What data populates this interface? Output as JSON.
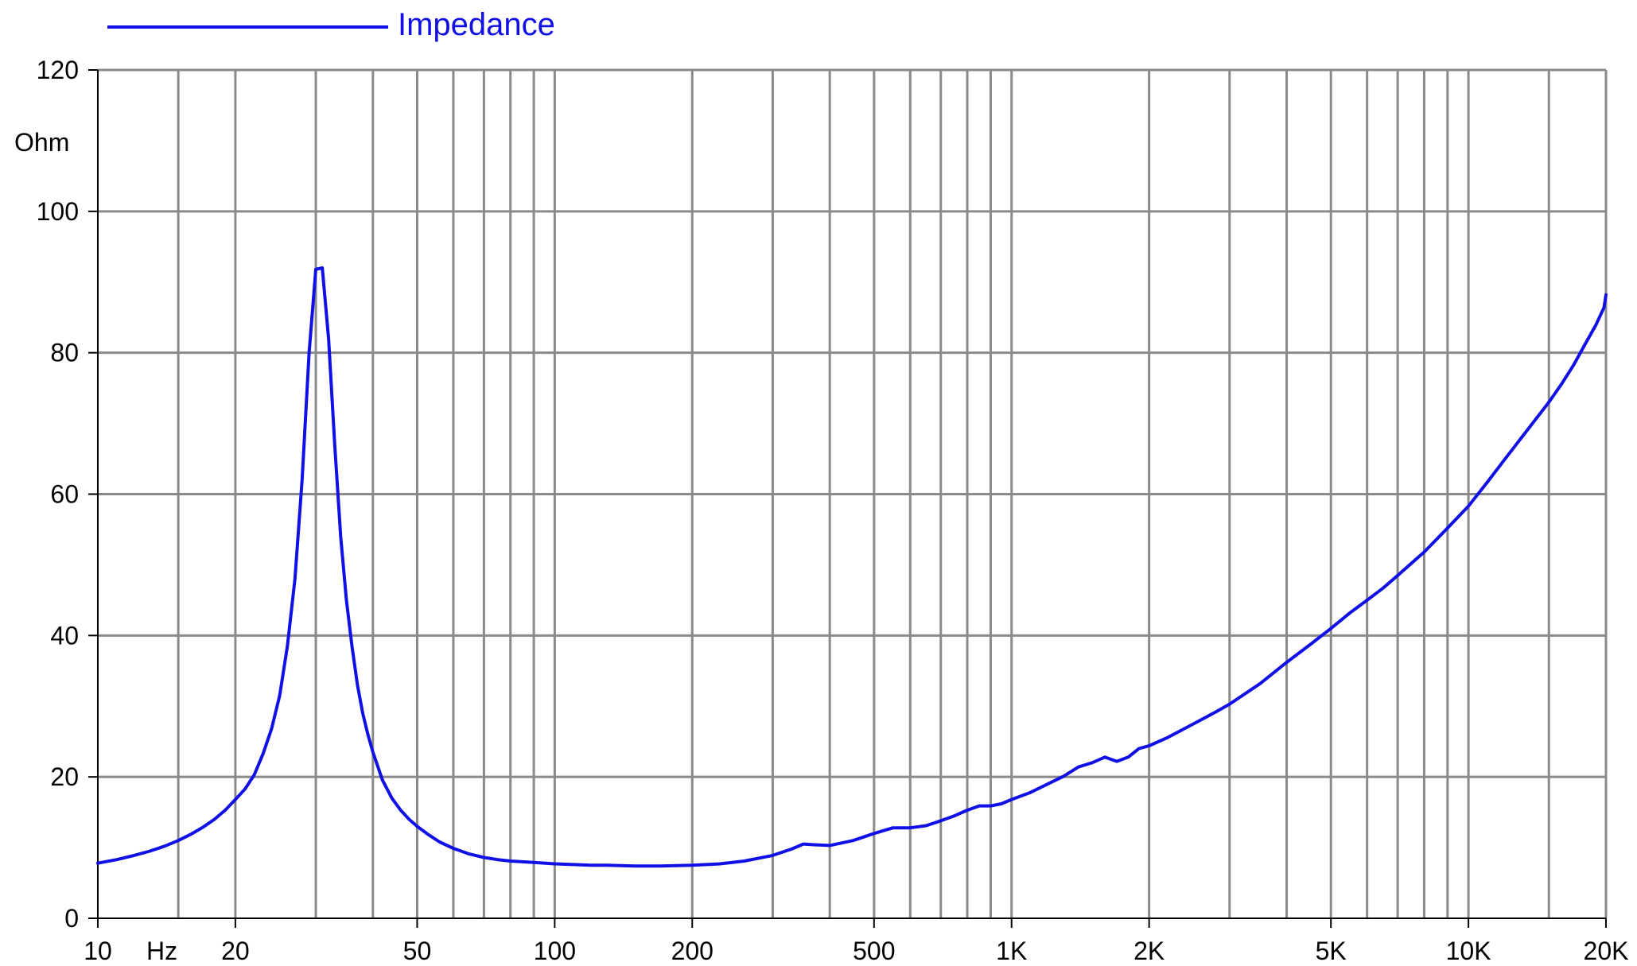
{
  "chart_data": {
    "type": "line",
    "title": "",
    "xlabel": "Hz",
    "ylabel": "Ohm",
    "x_scale": "log",
    "xlim": [
      10,
      20000
    ],
    "ylim": [
      0,
      120
    ],
    "grid": true,
    "legend_position": "top-left",
    "colors": {
      "line": "#1010e6",
      "grid": "#8a8a8a",
      "axis": "#000000"
    },
    "x_ticks": [
      {
        "value": 10,
        "label": "10"
      },
      {
        "value": 20,
        "label": "20"
      },
      {
        "value": 50,
        "label": "50"
      },
      {
        "value": 100,
        "label": "100"
      },
      {
        "value": 200,
        "label": "200"
      },
      {
        "value": 500,
        "label": "500"
      },
      {
        "value": 1000,
        "label": "1K"
      },
      {
        "value": 2000,
        "label": "2K"
      },
      {
        "value": 5000,
        "label": "5K"
      },
      {
        "value": 10000,
        "label": "10K"
      },
      {
        "value": 20000,
        "label": "20K"
      }
    ],
    "y_ticks": [
      {
        "value": 0,
        "label": "0"
      },
      {
        "value": 20,
        "label": "20"
      },
      {
        "value": 40,
        "label": "40"
      },
      {
        "value": 60,
        "label": "60"
      },
      {
        "value": 80,
        "label": "80"
      },
      {
        "value": 100,
        "label": "100"
      },
      {
        "value": 120,
        "label": "120"
      }
    ],
    "x_gridlines": [
      15,
      20,
      30,
      40,
      50,
      60,
      70,
      80,
      90,
      100,
      200,
      300,
      400,
      500,
      600,
      700,
      800,
      900,
      1000,
      2000,
      3000,
      4000,
      5000,
      6000,
      7000,
      8000,
      9000,
      10000,
      15000,
      20000
    ],
    "series": [
      {
        "name": "Impedance",
        "x": [
          10,
          11,
          12,
          13,
          14,
          15,
          16,
          17,
          18,
          19,
          20,
          21,
          22,
          23,
          24,
          25,
          26,
          27,
          28,
          29,
          30,
          31,
          32,
          33,
          34,
          35,
          36,
          37,
          38,
          39,
          40,
          42,
          44,
          46,
          48,
          50,
          53,
          56,
          60,
          65,
          70,
          75,
          80,
          90,
          100,
          110,
          120,
          130,
          150,
          170,
          200,
          230,
          260,
          300,
          330,
          350,
          370,
          400,
          450,
          500,
          550,
          600,
          650,
          700,
          750,
          800,
          850,
          900,
          950,
          1000,
          1100,
          1200,
          1300,
          1400,
          1500,
          1600,
          1700,
          1800,
          1900,
          2000,
          2200,
          2500,
          2800,
          3000,
          3500,
          4000,
          4500,
          5000,
          5500,
          6000,
          6500,
          7000,
          8000,
          9000,
          10000,
          11000,
          12000,
          13000,
          14000,
          15000,
          16000,
          17000,
          18000,
          19000,
          19800,
          20000
        ],
        "y": [
          7.8,
          8.3,
          8.9,
          9.5,
          10.2,
          11.0,
          11.9,
          12.9,
          14.0,
          15.3,
          16.8,
          18.3,
          20.3,
          23.3,
          26.8,
          31.5,
          38.5,
          48.0,
          62.0,
          80.0,
          91.8,
          92.0,
          82.0,
          67.0,
          54.0,
          45.0,
          38.5,
          33.0,
          29.0,
          26.0,
          23.5,
          19.5,
          17.0,
          15.3,
          14.0,
          13.0,
          11.8,
          10.8,
          9.9,
          9.1,
          8.6,
          8.3,
          8.1,
          7.9,
          7.7,
          7.6,
          7.5,
          7.5,
          7.4,
          7.4,
          7.5,
          7.7,
          8.1,
          8.9,
          9.8,
          10.5,
          10.4,
          10.3,
          11.0,
          12.0,
          12.8,
          12.8,
          13.1,
          13.8,
          14.5,
          15.3,
          15.9,
          15.9,
          16.2,
          16.8,
          17.8,
          19.0,
          20.1,
          21.4,
          22.0,
          22.8,
          22.2,
          22.8,
          24.0,
          24.4,
          25.6,
          27.5,
          29.2,
          30.3,
          33.2,
          36.2,
          38.7,
          41.0,
          43.2,
          45.0,
          46.7,
          48.5,
          51.8,
          55.2,
          58.3,
          61.7,
          64.9,
          67.8,
          70.5,
          73.0,
          75.6,
          78.3,
          81.2,
          83.9,
          86.4,
          88.2
        ]
      }
    ]
  }
}
